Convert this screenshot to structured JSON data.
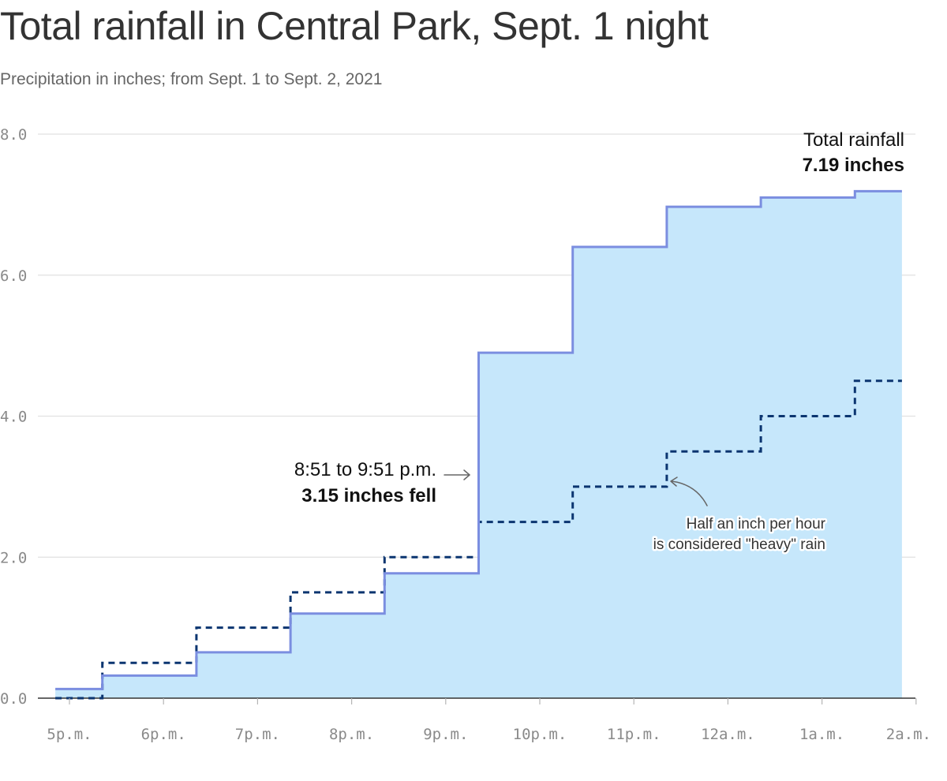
{
  "title": "Total rainfall in Central Park, Sept. 1 night",
  "subtitle": "Precipitation in inches; from Sept. 1 to Sept. 2, 2021",
  "colors": {
    "area_fill": "#c6e7fb",
    "total_line": "#7b8ee0",
    "heavy_line": "#0b3570",
    "grid": "#e1e1e1",
    "axis": "#333333"
  },
  "chart_data": {
    "type": "area",
    "x_tick_labels": [
      "5p.m.",
      "6p.m.",
      "7p.m.",
      "8p.m.",
      "9p.m.",
      "10p.m.",
      "11p.m.",
      "12a.m.",
      "1a.m.",
      "2a.m."
    ],
    "y_tick_labels": [
      "0.0",
      "2.0",
      "4.0",
      "6.0",
      "8.0"
    ],
    "ylim": [
      0,
      8
    ],
    "grid": true,
    "series": [
      {
        "style": "step-area",
        "x": [
          "4:51 p.m.",
          "5:21 p.m.",
          "6:21 p.m.",
          "7:21 p.m.",
          "8:21 p.m.",
          "9:21 p.m.",
          "10:21 p.m.",
          "11:21 p.m.",
          "12:21 a.m.",
          "1:21 a.m.",
          "1:51 a.m."
        ],
        "values": [
          0.13,
          0.32,
          0.65,
          1.2,
          1.77,
          4.9,
          6.4,
          6.97,
          7.1,
          7.19,
          7.19
        ]
      },
      {
        "style": "dashed-step",
        "x": [
          "4:51 p.m.",
          "5:21 p.m.",
          "6:21 p.m.",
          "7:21 p.m.",
          "8:21 p.m.",
          "9:21 p.m.",
          "10:21 p.m.",
          "11:21 p.m.",
          "12:21 a.m.",
          "1:21 a.m.",
          "1:51 a.m."
        ],
        "values": [
          0.0,
          0.5,
          1.0,
          1.5,
          2.0,
          2.5,
          3.0,
          3.5,
          4.0,
          4.5,
          4.5
        ]
      }
    ],
    "annotations": {
      "total_line1": "Total rainfall",
      "total_line2": "7.19 inches",
      "peak_line1": "8:51 to 9:51 p.m.",
      "peak_line2": "3.15 inches fell",
      "heavy_line1": "Half an inch per hour",
      "heavy_line2": "is considered \"heavy\" rain"
    }
  }
}
